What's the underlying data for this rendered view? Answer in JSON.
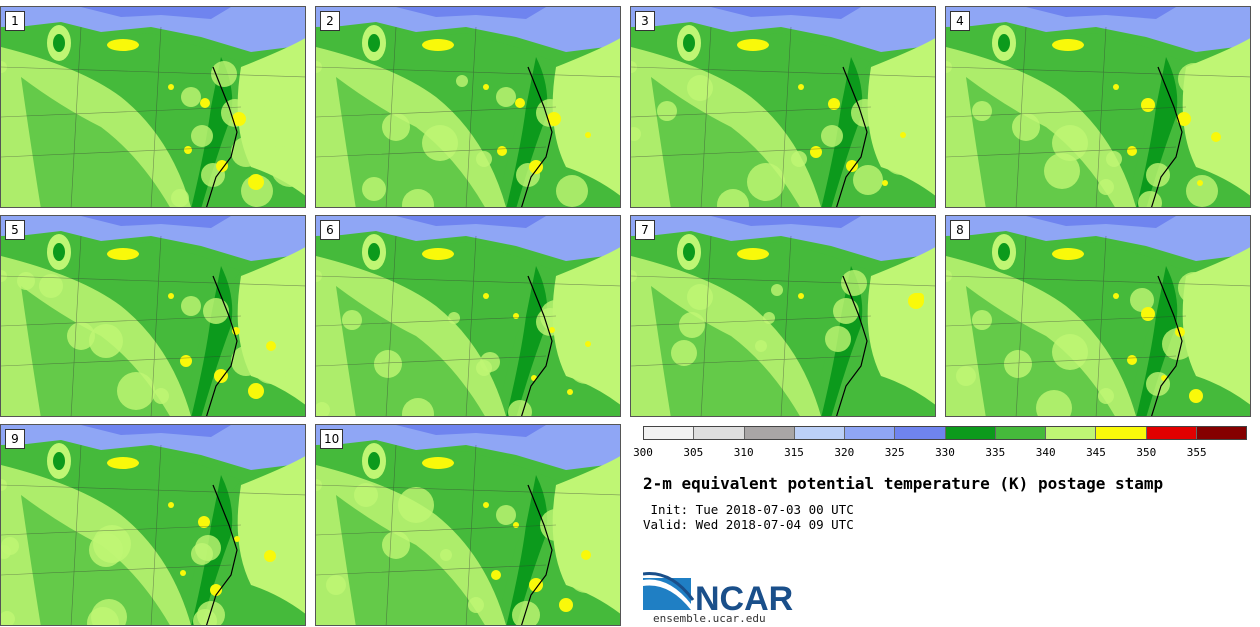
{
  "panels": [
    {
      "label": "1"
    },
    {
      "label": "2"
    },
    {
      "label": "3"
    },
    {
      "label": "4"
    },
    {
      "label": "5"
    },
    {
      "label": "6"
    },
    {
      "label": "7"
    },
    {
      "label": "8"
    },
    {
      "label": "9"
    },
    {
      "label": "10"
    }
  ],
  "colorbar": {
    "colors": [
      "#f2f2f2",
      "#dedede",
      "#a9a6a6",
      "#bcd0f7",
      "#8fa6f5",
      "#6f84ef",
      "#0c9a1c",
      "#45ba3b",
      "#bff674",
      "#f9f90a",
      "#e20000",
      "#850000"
    ],
    "ticks": [
      "300",
      "305",
      "310",
      "315",
      "320",
      "325",
      "330",
      "335",
      "340",
      "345",
      "350",
      "355"
    ]
  },
  "title": "2-m equivalent potential temperature (K) postage stamp",
  "init_line": " Init: Tue 2018-07-03 00 UTC",
  "valid_line": "Valid: Wed 2018-07-04 09 UTC",
  "logo": {
    "text": "NCAR",
    "url": "ensemble.ucar.edu",
    "color": "#1a4f8a"
  }
}
